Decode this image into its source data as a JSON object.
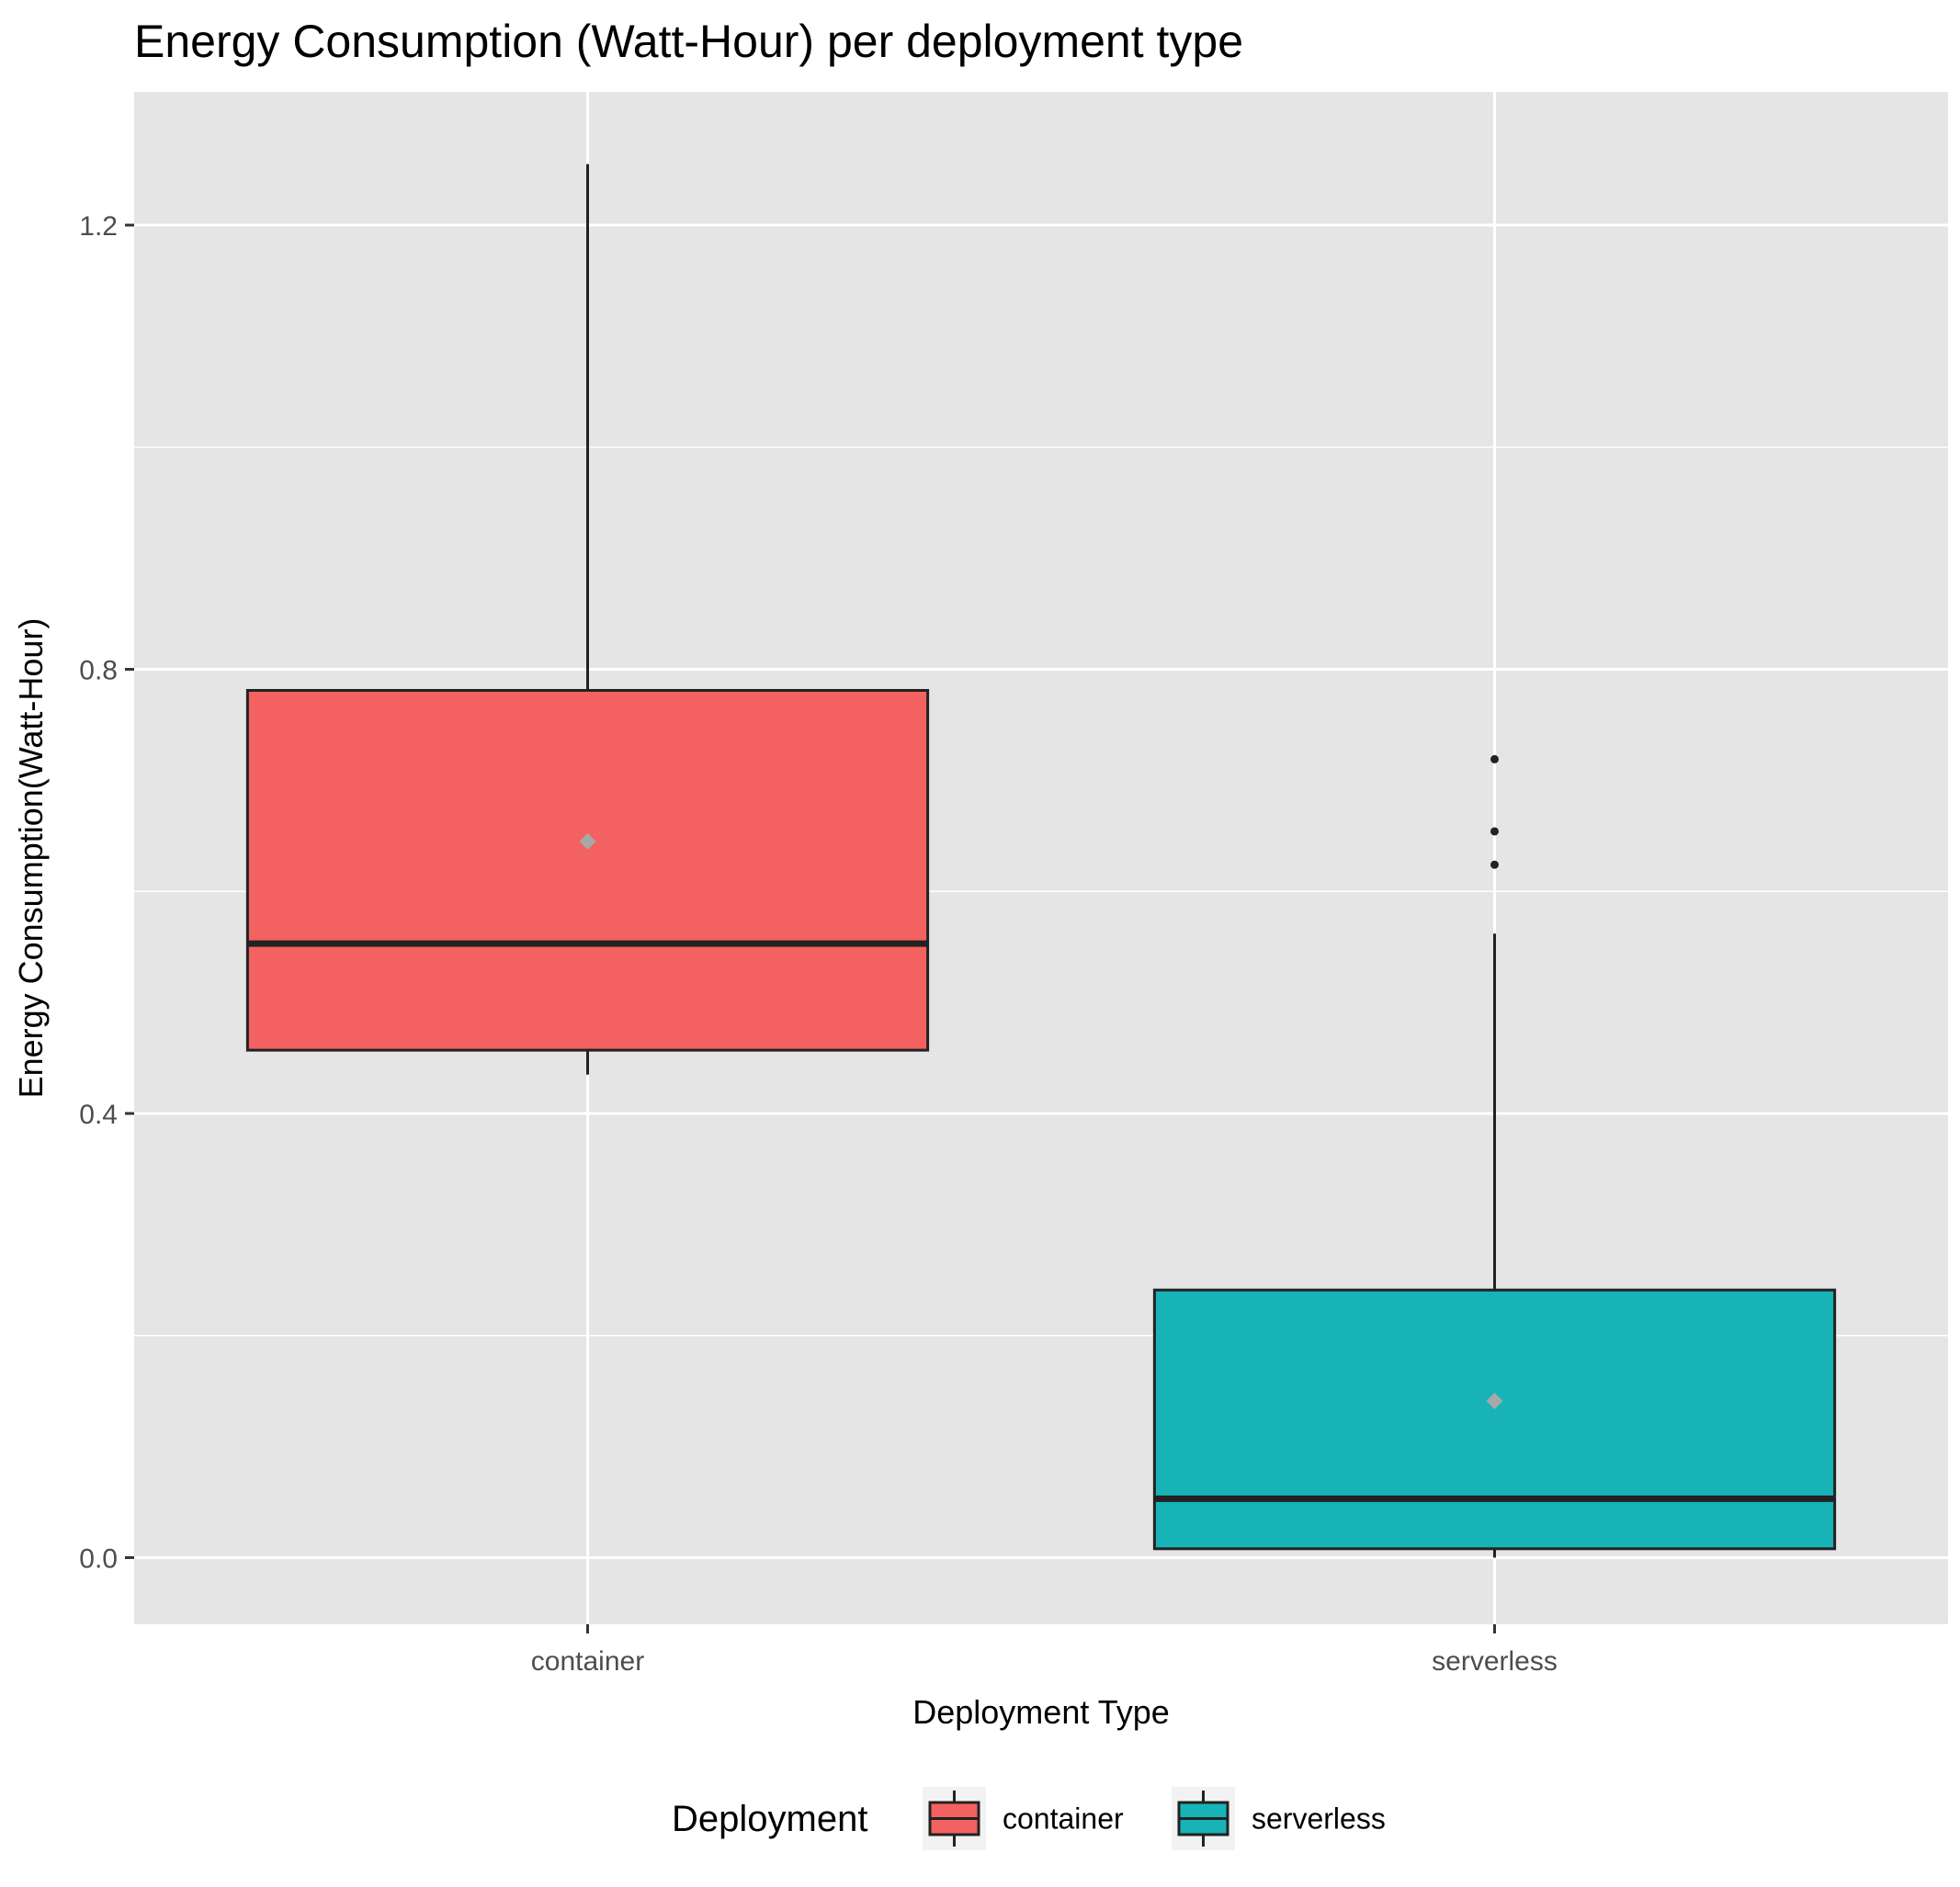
{
  "chart_data": {
    "type": "boxplot",
    "title": "Energy Consumption (Watt-Hour) per deployment type",
    "xlabel": "Deployment Type",
    "ylabel": "Energy Consumption(Watt-Hour)",
    "ylim": [
      -0.06,
      1.32
    ],
    "yticks": [
      0.0,
      0.4,
      0.8,
      1.2
    ],
    "ytick_labels": [
      "0.0",
      "0.4",
      "0.8",
      "1.2"
    ],
    "y_minor_ticks": [
      0.2,
      0.6,
      1.0
    ],
    "grid": true,
    "categories": [
      "container",
      "serverless"
    ],
    "boxes": [
      {
        "category": "container",
        "fill": "#F36161",
        "whisker_low": 0.435,
        "q1": 0.457,
        "median": 0.553,
        "q3": 0.781,
        "whisker_high": 1.255,
        "mean": 0.645,
        "outliers": []
      },
      {
        "category": "serverless",
        "fill": "#18B3B7",
        "whisker_low": 0.0,
        "q1": 0.008,
        "median": 0.053,
        "q3": 0.241,
        "whisker_high": 0.562,
        "mean": 0.141,
        "outliers": [
          0.624,
          0.654,
          0.719
        ]
      }
    ],
    "legend": {
      "title": "Deployment",
      "position": "bottom",
      "entries": [
        {
          "label": "container",
          "fill": "#F36161"
        },
        {
          "label": "serverless",
          "fill": "#18B3B7"
        }
      ]
    },
    "colors": {
      "panel_background": "#E5E5E5",
      "grid_line": "#FFFFFF",
      "box_outline": "#222222",
      "mean_marker": "#A8A8A8"
    }
  }
}
